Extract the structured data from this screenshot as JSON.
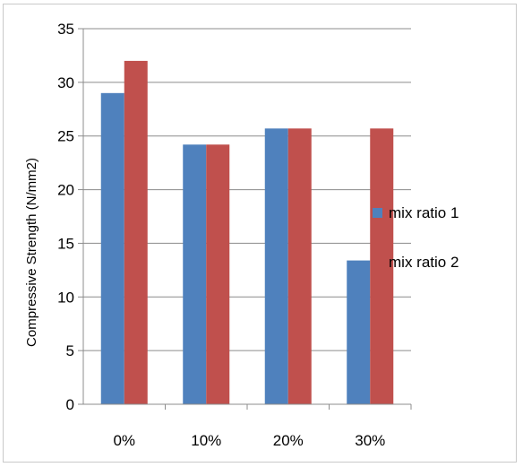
{
  "chart_data": {
    "type": "bar",
    "title": "",
    "xlabel": "",
    "ylabel": "Compressive Strength (N/mm2)",
    "categories": [
      "0%",
      "10%",
      "20%",
      "30%"
    ],
    "series": [
      {
        "name": "mix ratio 1",
        "color": "#4f81bd",
        "values": [
          29,
          24.2,
          25.7,
          13.4
        ]
      },
      {
        "name": "mix ratio 2",
        "color": "#c0504d",
        "values": [
          32,
          24.2,
          25.7,
          25.7
        ]
      }
    ],
    "ylim": [
      0,
      35
    ],
    "yticks": [
      0,
      5,
      10,
      15,
      20,
      25,
      30,
      35
    ],
    "grid": true,
    "legend_position": "right"
  }
}
